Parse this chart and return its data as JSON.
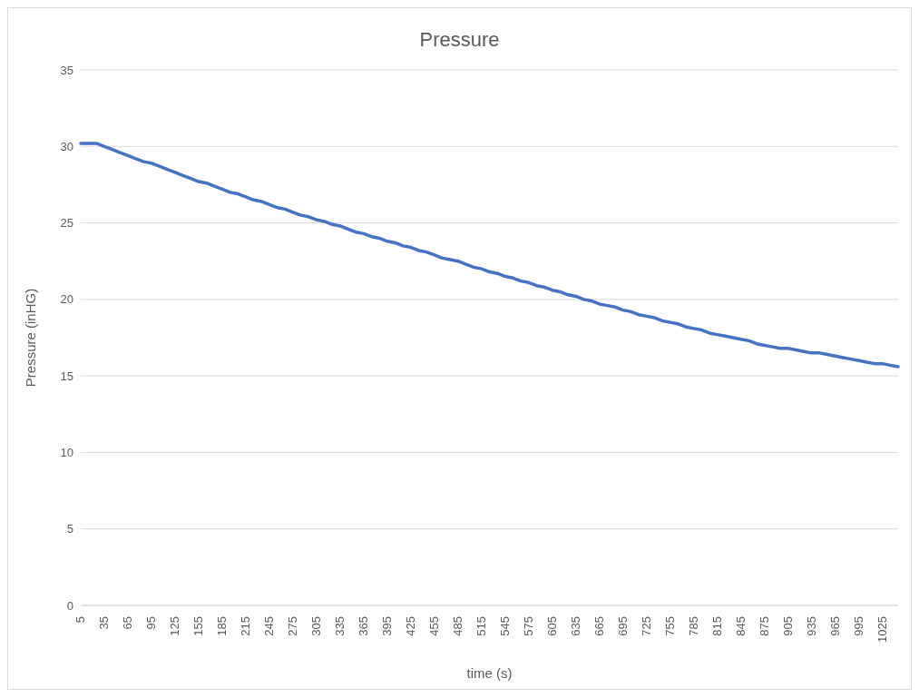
{
  "chart_data": {
    "type": "line",
    "title": "Pressure",
    "xlabel": "time (s)",
    "ylabel": "Pressure (inHG)",
    "categories": [
      "5",
      null,
      null,
      "35",
      null,
      null,
      "65",
      null,
      null,
      "95",
      null,
      null,
      "125",
      null,
      null,
      "155",
      null,
      null,
      "185",
      null,
      null,
      "215",
      null,
      null,
      "245",
      null,
      null,
      "275",
      null,
      null,
      "305",
      null,
      null,
      "335",
      null,
      null,
      "365",
      null,
      null,
      "395",
      null,
      null,
      "425",
      null,
      null,
      "455",
      null,
      null,
      "485",
      null,
      null,
      "515",
      null,
      null,
      "545",
      null,
      null,
      "575",
      null,
      null,
      "605",
      null,
      null,
      "635",
      null,
      null,
      "665",
      null,
      null,
      "695",
      null,
      null,
      "725",
      null,
      null,
      "755",
      null,
      null,
      "785",
      null,
      null,
      "815",
      null,
      null,
      "845",
      null,
      null,
      "875",
      null,
      null,
      "905",
      null,
      null,
      "935",
      null,
      null,
      "965",
      null,
      null,
      "995",
      null,
      null,
      "1025",
      null,
      null
    ],
    "series": [
      {
        "color": "#4472c4",
        "values": [
          30.2,
          30.2,
          30.2,
          30.0,
          29.8,
          29.6,
          29.4,
          29.2,
          29.0,
          28.9,
          28.7,
          28.5,
          28.3,
          28.1,
          27.9,
          27.7,
          27.6,
          27.4,
          27.2,
          27.0,
          26.9,
          26.7,
          26.5,
          26.4,
          26.2,
          26.0,
          25.9,
          25.7,
          25.5,
          25.4,
          25.2,
          25.1,
          24.9,
          24.8,
          24.6,
          24.4,
          24.3,
          24.1,
          24.0,
          23.8,
          23.7,
          23.5,
          23.4,
          23.2,
          23.1,
          22.9,
          22.7,
          22.6,
          22.5,
          22.3,
          22.1,
          22.0,
          21.8,
          21.7,
          21.5,
          21.4,
          21.2,
          21.1,
          20.9,
          20.8,
          20.6,
          20.5,
          20.3,
          20.2,
          20.0,
          19.9,
          19.7,
          19.6,
          19.5,
          19.3,
          19.2,
          19.0,
          18.9,
          18.8,
          18.6,
          18.5,
          18.4,
          18.2,
          18.1,
          18.0,
          17.8,
          17.7,
          17.6,
          17.5,
          17.4,
          17.3,
          17.1,
          17.0,
          16.9,
          16.8,
          16.8,
          16.7,
          16.6,
          16.5,
          16.5,
          16.4,
          16.3,
          16.2,
          16.1,
          16.0,
          15.9,
          15.8,
          15.8,
          15.7,
          15.6
        ]
      }
    ],
    "ylim": [
      0,
      35
    ],
    "yticks": [
      0,
      5,
      10,
      15,
      20,
      25,
      30,
      35
    ],
    "grid": "y",
    "legend": false,
    "marker": "none",
    "line_style": "solid"
  }
}
